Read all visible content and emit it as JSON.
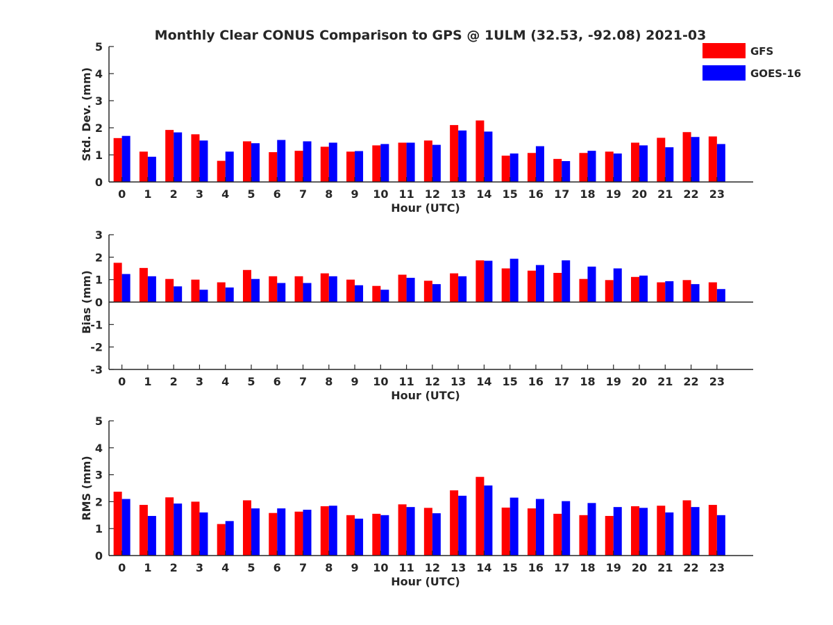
{
  "figure": {
    "title": "Monthly Clear CONUS Comparison to GPS @ 1ULM (32.53, -92.08) 2021-03",
    "legend": [
      {
        "name": "GFS",
        "color": "#ff0000"
      },
      {
        "name": "GOES-16",
        "color": "#0000ff"
      }
    ]
  },
  "chart_data": [
    {
      "type": "bar",
      "title": "Monthly Clear CONUS Comparison to GPS @ 1ULM (32.53, -92.08) 2021-03",
      "xlabel": "Hour (UTC)",
      "ylabel": "Std. Dev. (mm)",
      "ylim": [
        0,
        5
      ],
      "yticks": [
        0,
        1,
        2,
        3,
        4,
        5
      ],
      "categories": [
        "0",
        "1",
        "2",
        "3",
        "4",
        "5",
        "6",
        "7",
        "8",
        "9",
        "10",
        "11",
        "12",
        "13",
        "14",
        "15",
        "16",
        "17",
        "18",
        "19",
        "20",
        "21",
        "22",
        "23"
      ],
      "legend_position": "top-right",
      "grid": false,
      "series": [
        {
          "name": "GFS",
          "color": "#ff0000",
          "values": [
            1.62,
            1.12,
            1.92,
            1.76,
            0.78,
            1.5,
            1.1,
            1.15,
            1.3,
            1.12,
            1.35,
            1.45,
            1.53,
            2.1,
            2.27,
            0.97,
            1.07,
            0.85,
            1.07,
            1.12,
            1.45,
            1.63,
            1.84,
            1.68
          ]
        },
        {
          "name": "GOES-16",
          "color": "#0000ff",
          "values": [
            1.7,
            0.93,
            1.83,
            1.53,
            1.12,
            1.43,
            1.55,
            1.5,
            1.45,
            1.14,
            1.4,
            1.45,
            1.37,
            1.9,
            1.86,
            1.05,
            1.32,
            0.77,
            1.15,
            1.05,
            1.35,
            1.28,
            1.66,
            1.4
          ]
        }
      ]
    },
    {
      "type": "bar",
      "xlabel": "Hour (UTC)",
      "ylabel": "Bias (mm)",
      "ylim": [
        -3,
        3
      ],
      "yticks": [
        -3,
        -2,
        -1,
        0,
        1,
        2,
        3
      ],
      "categories": [
        "0",
        "1",
        "2",
        "3",
        "4",
        "5",
        "6",
        "7",
        "8",
        "9",
        "10",
        "11",
        "12",
        "13",
        "14",
        "15",
        "16",
        "17",
        "18",
        "19",
        "20",
        "21",
        "22",
        "23"
      ],
      "grid": false,
      "series": [
        {
          "name": "GFS",
          "color": "#ff0000",
          "values": [
            1.75,
            1.52,
            1.03,
            1.0,
            0.88,
            1.43,
            1.15,
            1.15,
            1.28,
            1.0,
            0.72,
            1.22,
            0.95,
            1.28,
            1.86,
            1.5,
            1.4,
            1.3,
            1.03,
            0.98,
            1.12,
            0.88,
            0.98,
            0.88
          ]
        },
        {
          "name": "GOES-16",
          "color": "#0000ff",
          "values": [
            1.25,
            1.15,
            0.7,
            0.55,
            0.65,
            1.03,
            0.85,
            0.85,
            1.15,
            0.75,
            0.55,
            1.08,
            0.8,
            1.15,
            1.84,
            1.93,
            1.65,
            1.86,
            1.58,
            1.5,
            1.18,
            0.93,
            0.8,
            0.58
          ]
        }
      ]
    },
    {
      "type": "bar",
      "xlabel": "Hour (UTC)",
      "ylabel": "RMS (mm)",
      "ylim": [
        0,
        5
      ],
      "yticks": [
        0,
        1,
        2,
        3,
        4,
        5
      ],
      "categories": [
        "0",
        "1",
        "2",
        "3",
        "4",
        "5",
        "6",
        "7",
        "8",
        "9",
        "10",
        "11",
        "12",
        "13",
        "14",
        "15",
        "16",
        "17",
        "18",
        "19",
        "20",
        "21",
        "22",
        "23"
      ],
      "grid": false,
      "series": [
        {
          "name": "GFS",
          "color": "#ff0000",
          "values": [
            2.37,
            1.88,
            2.16,
            2.0,
            1.17,
            2.05,
            1.58,
            1.63,
            1.83,
            1.5,
            1.55,
            1.9,
            1.77,
            2.42,
            2.92,
            1.78,
            1.75,
            1.55,
            1.5,
            1.47,
            1.83,
            1.85,
            2.05,
            1.88
          ]
        },
        {
          "name": "GOES-16",
          "color": "#0000ff",
          "values": [
            2.1,
            1.47,
            1.93,
            1.6,
            1.28,
            1.75,
            1.75,
            1.7,
            1.85,
            1.37,
            1.5,
            1.8,
            1.57,
            2.22,
            2.6,
            2.15,
            2.1,
            2.02,
            1.95,
            1.8,
            1.77,
            1.6,
            1.8,
            1.5
          ]
        }
      ]
    }
  ]
}
